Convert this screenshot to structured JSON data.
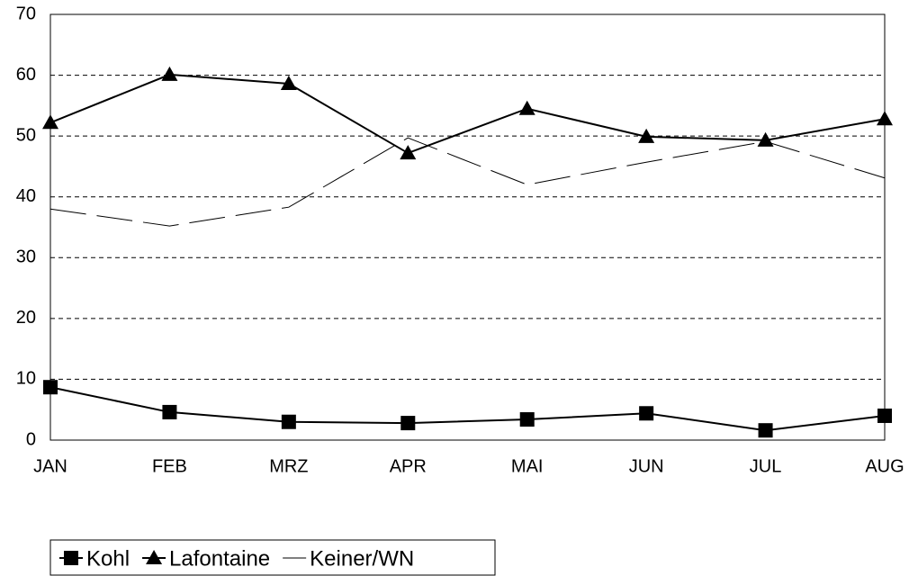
{
  "chart_data": {
    "type": "line",
    "categories": [
      "JAN",
      "FEB",
      "MRZ",
      "APR",
      "MAI",
      "JUN",
      "JUL",
      "AUG"
    ],
    "series": [
      {
        "name": "Kohl",
        "color": "#000000",
        "marker": "square",
        "dashed": false,
        "values": [
          8.7,
          4.6,
          3.0,
          2.8,
          3.4,
          4.4,
          1.6,
          4.0
        ]
      },
      {
        "name": "Lafontaine",
        "color": "#000000",
        "marker": "triangle",
        "dashed": false,
        "values": [
          52.2,
          60.1,
          58.6,
          47.2,
          54.5,
          49.9,
          49.3,
          52.8
        ]
      },
      {
        "name": "Keiner/WN",
        "color": "#000000",
        "marker": "none",
        "dashed": true,
        "values": [
          38.0,
          35.2,
          38.3,
          49.7,
          42.0,
          45.7,
          49.1,
          43.1
        ]
      }
    ],
    "ylim": [
      0,
      70
    ],
    "yticks": [
      0,
      10,
      20,
      30,
      40,
      50,
      60,
      70
    ],
    "grid": true,
    "legend": "bottom-left"
  }
}
